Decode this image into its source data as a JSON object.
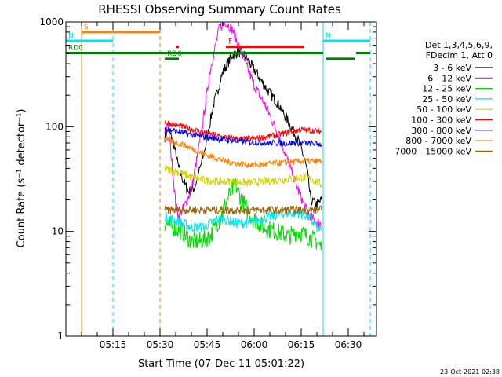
{
  "chart_data": {
    "type": "line",
    "title": "RHESSI Observing Summary Count Rates",
    "xlabel": "Start Time (07-Dec-11 05:01:22)",
    "ylabel": "Count Rate (s⁻¹ detector⁻¹)",
    "ylim": [
      1,
      1000
    ],
    "yscale": "log",
    "xlim_minutes": [
      0,
      99
    ],
    "x_ticks": [
      {
        "label": "05:15",
        "t": 15
      },
      {
        "label": "05:30",
        "t": 30
      },
      {
        "label": "05:45",
        "t": 45
      },
      {
        "label": "06:00",
        "t": 60
      },
      {
        "label": "06:15",
        "t": 75
      },
      {
        "label": "06:30",
        "t": 90
      }
    ],
    "y_ticks": [
      {
        "label": "1",
        "v": 1
      },
      {
        "label": "10",
        "v": 10
      },
      {
        "label": "100",
        "v": 100
      },
      {
        "label": "1000",
        "v": 1000
      }
    ],
    "legend": {
      "placement": "right",
      "header": [
        "Det 1,3,4,5,6,9,",
        "FDecim 1, Att 0"
      ],
      "entries": [
        {
          "label": "3 - 6 keV",
          "color": "#000000"
        },
        {
          "label": "6 - 12 keV",
          "color": "#ff00ff"
        },
        {
          "label": "12 - 25 keV",
          "color": "#00dd00"
        },
        {
          "label": "25 - 50 keV",
          "color": "#00e5ee"
        },
        {
          "label": "50 - 100 keV",
          "color": "#d4d400"
        },
        {
          "label": "100 - 300 keV",
          "color": "#ff0000"
        },
        {
          "label": "300 - 800 keV",
          "color": "#0000ff"
        },
        {
          "label": "800 - 7000 keV",
          "color": "#ff8000"
        },
        {
          "label": "7000 - 15000 keV",
          "color": "#a06000"
        }
      ]
    },
    "flag_bars": [
      {
        "label": "S",
        "color": "#ff8000",
        "t0": 5,
        "t1": 30,
        "v": 800
      },
      {
        "label": "N",
        "color": "#00e5ee",
        "t0": 0,
        "t1": 15,
        "v": 660
      },
      {
        "label": "N",
        "color": "#00e5ee",
        "t0": 82,
        "t1": 97,
        "v": 660
      },
      {
        "label": "F",
        "color": "#ff0000",
        "t0": 51,
        "t1": 76,
        "v": 580
      },
      {
        "label": "",
        "color": "#ff0000",
        "t0": 35,
        "t1": 36,
        "v": 580
      },
      {
        "label": "RD0",
        "color": "#008000",
        "t0": 0,
        "t1": 82,
        "v": 505
      },
      {
        "label": "RD6",
        "color": "#008000",
        "t0": 31.5,
        "t1": 36,
        "v": 445
      },
      {
        "label": "",
        "color": "#008000",
        "t0": 83,
        "t1": 92,
        "v": 445
      },
      {
        "label": "",
        "color": "#008000",
        "t0": 92.5,
        "t1": 97,
        "v": 505
      }
    ],
    "vlines": [
      {
        "t": 5,
        "color": "#ff8000",
        "style": "solid"
      },
      {
        "t": 15,
        "color": "#00e5ee",
        "style": "dashed"
      },
      {
        "t": 30,
        "color": "#ff8000",
        "style": "dashed"
      },
      {
        "t": 82,
        "color": "#00e5ee",
        "style": "solid"
      },
      {
        "t": 97,
        "color": "#00e5ee",
        "style": "dashed"
      }
    ],
    "series": [
      {
        "name": "3 - 6 keV",
        "color": "#000000",
        "noise": 0.05,
        "points": [
          [
            31.5,
            80
          ],
          [
            32.5,
            95
          ],
          [
            34,
            75
          ],
          [
            35,
            55
          ],
          [
            36,
            40
          ],
          [
            37.5,
            30
          ],
          [
            39,
            24
          ],
          [
            41,
            26
          ],
          [
            44,
            55
          ],
          [
            47,
            160
          ],
          [
            50,
            330
          ],
          [
            53,
            480
          ],
          [
            55,
            520
          ],
          [
            57,
            480
          ],
          [
            60,
            350
          ],
          [
            64,
            230
          ],
          [
            68,
            160
          ],
          [
            71,
            110
          ],
          [
            74,
            75
          ],
          [
            76,
            50
          ],
          [
            77,
            36
          ],
          [
            78,
            20
          ],
          [
            80,
            18
          ],
          [
            81.5,
            20
          ]
        ]
      },
      {
        "name": "6 - 12 keV",
        "color": "#ff00ff",
        "noise": 0.05,
        "points": [
          [
            31.5,
            90
          ],
          [
            32.5,
            110
          ],
          [
            34,
            40
          ],
          [
            35,
            18
          ],
          [
            36,
            14
          ],
          [
            38,
            18
          ],
          [
            40,
            25
          ],
          [
            43,
            80
          ],
          [
            46,
            350
          ],
          [
            49,
            900
          ],
          [
            51,
            1000
          ],
          [
            53,
            850
          ],
          [
            56,
            500
          ],
          [
            60,
            250
          ],
          [
            64,
            150
          ],
          [
            68,
            80
          ],
          [
            71,
            45
          ],
          [
            74,
            25
          ],
          [
            77,
            15
          ],
          [
            80,
            12
          ],
          [
            81.5,
            12
          ]
        ]
      },
      {
        "name": "12 - 25 keV",
        "color": "#00dd00",
        "noise": 0.09,
        "points": [
          [
            31.5,
            12
          ],
          [
            34,
            11
          ],
          [
            37,
            10
          ],
          [
            40,
            8
          ],
          [
            43,
            8
          ],
          [
            46,
            9
          ],
          [
            49,
            13
          ],
          [
            52,
            22
          ],
          [
            54,
            28
          ],
          [
            56,
            20
          ],
          [
            59,
            14
          ],
          [
            63,
            11
          ],
          [
            67,
            10
          ],
          [
            71,
            9
          ],
          [
            74,
            10
          ],
          [
            77,
            9
          ],
          [
            80,
            8
          ],
          [
            81.5,
            7
          ]
        ]
      },
      {
        "name": "25 - 50 keV",
        "color": "#00e5ee",
        "noise": 0.05,
        "points": [
          [
            31.5,
            14
          ],
          [
            34,
            13
          ],
          [
            37,
            12
          ],
          [
            40,
            11
          ],
          [
            44,
            11
          ],
          [
            48,
            13
          ],
          [
            51,
            13
          ],
          [
            54,
            12
          ],
          [
            58,
            12
          ],
          [
            62,
            13
          ],
          [
            66,
            14
          ],
          [
            70,
            15
          ],
          [
            74,
            15
          ],
          [
            77,
            14
          ],
          [
            80,
            11
          ],
          [
            81.5,
            10
          ]
        ]
      },
      {
        "name": "50 - 100 keV",
        "color": "#d4d400",
        "noise": 0.04,
        "points": [
          [
            31.5,
            40
          ],
          [
            34,
            38
          ],
          [
            37,
            36
          ],
          [
            40,
            33
          ],
          [
            44,
            31
          ],
          [
            48,
            30
          ],
          [
            53,
            30
          ],
          [
            58,
            29
          ],
          [
            63,
            30
          ],
          [
            68,
            31
          ],
          [
            72,
            32
          ],
          [
            76,
            33
          ],
          [
            79,
            31
          ],
          [
            81.5,
            28
          ]
        ]
      },
      {
        "name": "100 - 300 keV",
        "color": "#ff0000",
        "noise": 0.03,
        "points": [
          [
            31.5,
            110
          ],
          [
            34,
            105
          ],
          [
            37,
            100
          ],
          [
            40,
            95
          ],
          [
            44,
            88
          ],
          [
            48,
            82
          ],
          [
            52,
            78
          ],
          [
            56,
            76
          ],
          [
            60,
            77
          ],
          [
            64,
            80
          ],
          [
            68,
            84
          ],
          [
            72,
            90
          ],
          [
            75,
            94
          ],
          [
            78,
            92
          ],
          [
            81.5,
            90
          ]
        ]
      },
      {
        "name": "300 - 800 keV",
        "color": "#0000ff",
        "noise": 0.03,
        "points": [
          [
            31.5,
            95
          ],
          [
            34,
            92
          ],
          [
            37,
            88
          ],
          [
            40,
            84
          ],
          [
            44,
            80
          ],
          [
            48,
            77
          ],
          [
            52,
            74
          ],
          [
            56,
            72
          ],
          [
            60,
            71
          ],
          [
            64,
            70
          ],
          [
            68,
            70
          ],
          [
            72,
            70
          ],
          [
            75,
            70
          ],
          [
            78,
            69
          ],
          [
            81.5,
            68
          ]
        ]
      },
      {
        "name": "800 - 7000 keV",
        "color": "#ff8000",
        "noise": 0.03,
        "points": [
          [
            31.5,
            75
          ],
          [
            34,
            72
          ],
          [
            37,
            68
          ],
          [
            40,
            62
          ],
          [
            44,
            55
          ],
          [
            48,
            50
          ],
          [
            52,
            46
          ],
          [
            56,
            44
          ],
          [
            60,
            43
          ],
          [
            64,
            44
          ],
          [
            68,
            45
          ],
          [
            72,
            46
          ],
          [
            76,
            47
          ],
          [
            79,
            47
          ],
          [
            81.5,
            47
          ]
        ]
      },
      {
        "name": "7000 - 15000 keV",
        "color": "#a06000",
        "noise": 0.04,
        "points": [
          [
            31.5,
            16
          ],
          [
            34,
            16
          ],
          [
            40,
            16
          ],
          [
            50,
            16
          ],
          [
            60,
            16
          ],
          [
            70,
            16
          ],
          [
            81.5,
            16
          ]
        ]
      }
    ],
    "timestamp": "23-Oct-2021 02:38"
  }
}
